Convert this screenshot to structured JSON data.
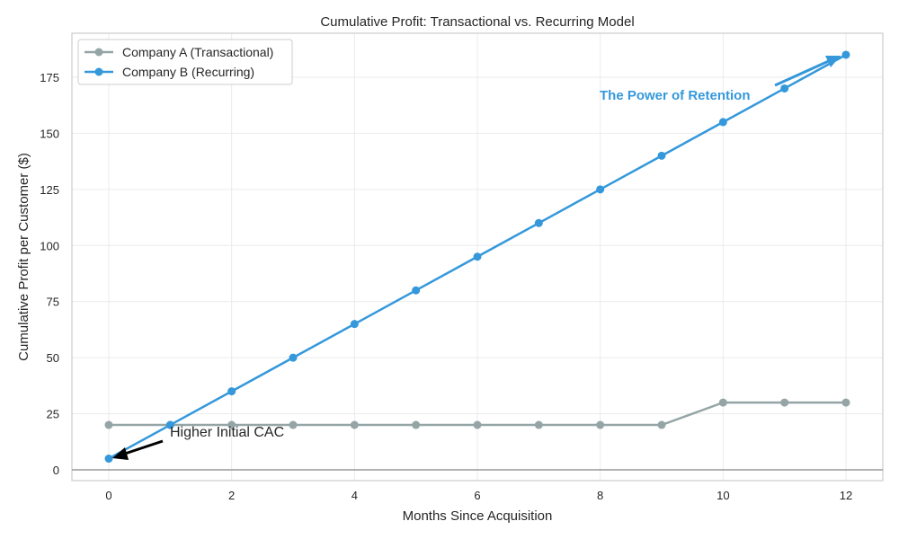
{
  "chart_data": {
    "type": "line",
    "title": "Cumulative Profit: Transactional vs. Recurring Model",
    "xlabel": "Months Since Acquisition",
    "ylabel": "Cumulative Profit per Customer ($)",
    "x": [
      0,
      1,
      2,
      3,
      4,
      5,
      6,
      7,
      8,
      9,
      10,
      11,
      12
    ],
    "xlim": [
      -0.6,
      12.6
    ],
    "ylim": [
      -4.8,
      194.6
    ],
    "xticks": [
      0,
      2,
      4,
      6,
      8,
      10,
      12
    ],
    "yticks": [
      0,
      25,
      50,
      75,
      100,
      125,
      150,
      175
    ],
    "grid": true,
    "legend": "top-left",
    "series": [
      {
        "name": "Company A (Transactional)",
        "color": "#95a5a6",
        "values": [
          20,
          20,
          20,
          20,
          20,
          20,
          20,
          20,
          20,
          20,
          30,
          30,
          30
        ]
      },
      {
        "name": "Company B (Recurring)",
        "color": "#3498db",
        "values": [
          5,
          20,
          35,
          50,
          65,
          80,
          95,
          110,
          125,
          140,
          155,
          170,
          185
        ]
      }
    ],
    "reference_line": {
      "y": 0,
      "color": "#999999"
    },
    "annotations": [
      {
        "text": "Higher Initial CAC",
        "point": [
          0,
          5
        ],
        "color": "#000000"
      },
      {
        "text": "The Power of Retention",
        "point": [
          12,
          185
        ],
        "color": "#3498db"
      }
    ]
  }
}
